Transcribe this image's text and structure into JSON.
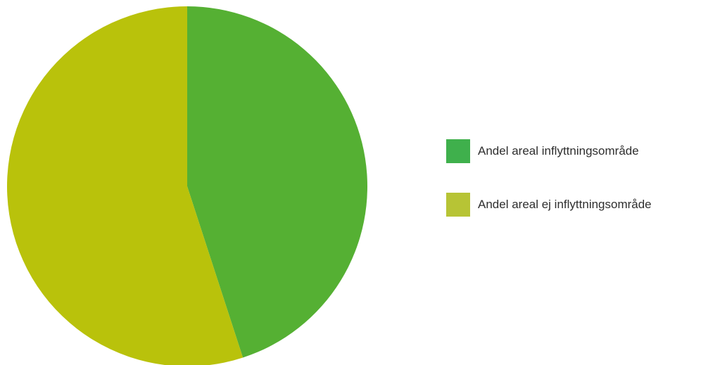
{
  "chart_data": {
    "type": "pie",
    "title": "",
    "legend_position": "right",
    "series": [
      {
        "name": "Andel areal inflyttningsområde",
        "value": 45,
        "slice_color": "#55b033",
        "legend_color": "#3fb04c"
      },
      {
        "name": "Andel areal ej inflyttningsområde",
        "value": 55,
        "slice_color": "#b9c20b",
        "legend_color": "#b7c435"
      }
    ]
  }
}
